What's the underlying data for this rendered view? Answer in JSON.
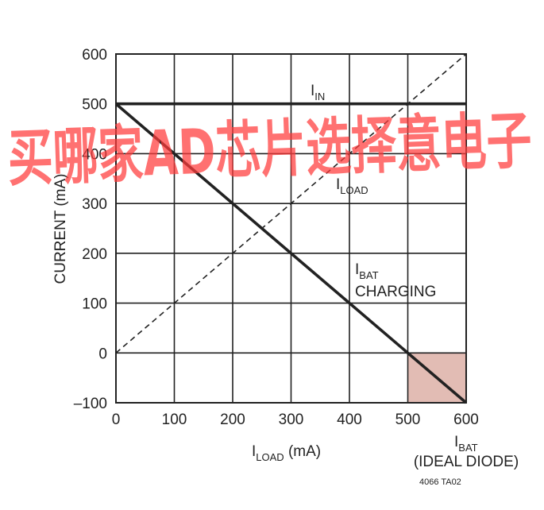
{
  "watermark": "买哪家AD芯片选择意电子",
  "figure_id": "4066 TA02",
  "colors": {
    "line": "#222222",
    "shade": "#e2bcb4",
    "grid": "#222222",
    "watermark": "#ff3b3b"
  },
  "chart_data": {
    "type": "line",
    "xlabel": {
      "main": "I",
      "sub": "LOAD",
      "suffix": " (mA)"
    },
    "ylabel": "CURRENT (mA)",
    "xlabel_right": {
      "main": "I",
      "sub": "BAT",
      "line2": "(IDEAL DIODE)"
    },
    "xlim": [
      0,
      600
    ],
    "ylim": [
      -100,
      600
    ],
    "x_ticks": [
      0,
      100,
      200,
      300,
      400,
      500,
      600
    ],
    "y_ticks": [
      -100,
      0,
      100,
      200,
      300,
      400,
      500,
      600
    ],
    "x_tick_labels": [
      "0",
      "100",
      "200",
      "300",
      "400",
      "500",
      "600"
    ],
    "y_tick_labels": [
      "–100",
      "0",
      "100",
      "200",
      "300",
      "400",
      "500",
      "600"
    ],
    "grid": true,
    "shaded_region": {
      "x": [
        500,
        600
      ],
      "y": [
        -100,
        0
      ]
    },
    "series": [
      {
        "key": "iin",
        "label_main": "I",
        "label_sub": "IN",
        "label_line2": "",
        "style": "thick",
        "x": [
          0,
          600
        ],
        "y": [
          500,
          500
        ]
      },
      {
        "key": "iload",
        "label_main": "I",
        "label_sub": "LOAD",
        "label_line2": "",
        "style": "dashed",
        "x": [
          0,
          600
        ],
        "y": [
          0,
          600
        ]
      },
      {
        "key": "ibat",
        "label_main": "I",
        "label_sub": "BAT",
        "label_line2": "CHARGING",
        "style": "thick",
        "x": [
          0,
          600
        ],
        "y": [
          500,
          -100
        ]
      }
    ]
  }
}
